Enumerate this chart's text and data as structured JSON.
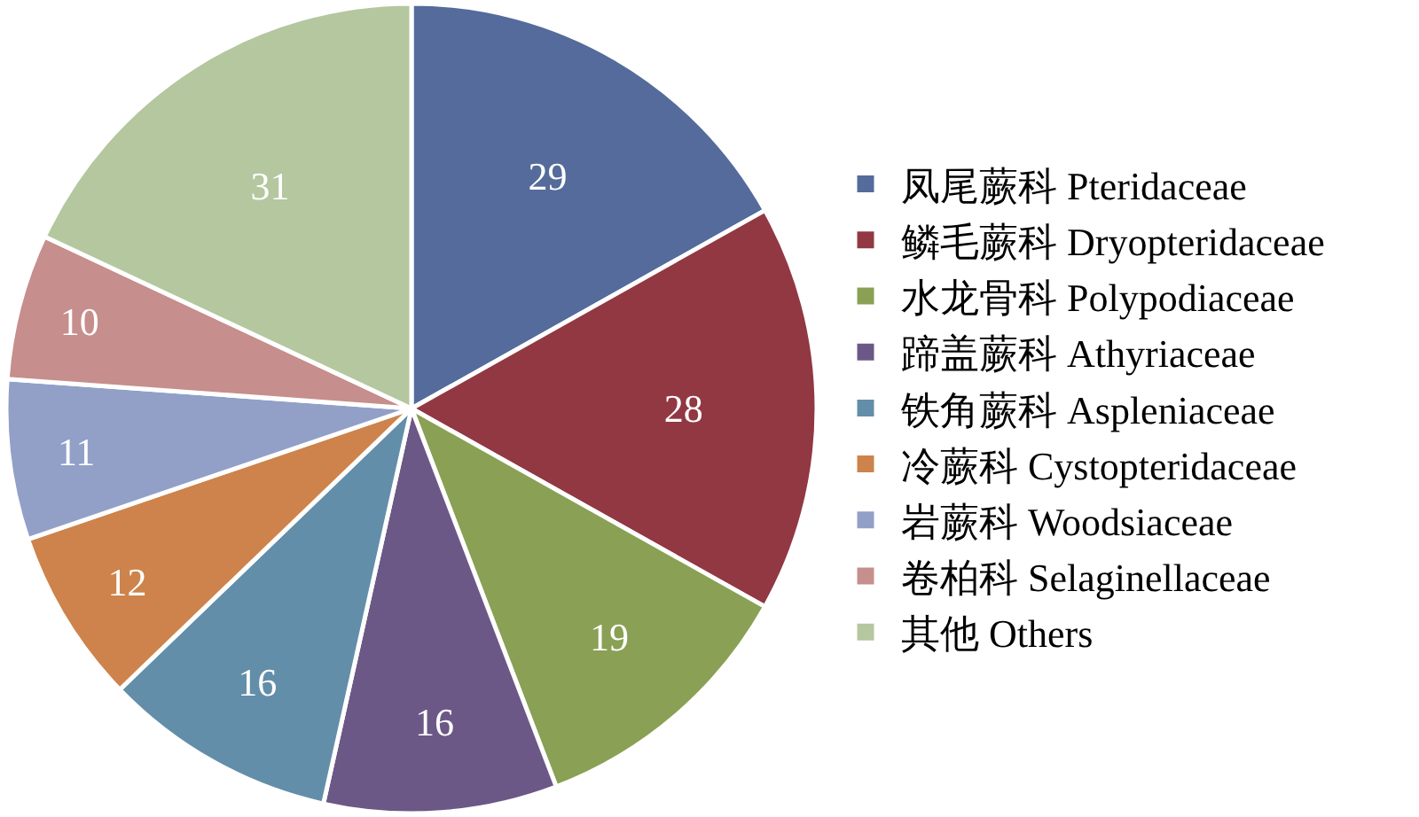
{
  "chart_data": {
    "type": "pie",
    "categories": [
      "凤尾蕨科 Pteridaceae",
      "鳞毛蕨科 Dryopteridaceae",
      "水龙骨科 Polypodiaceae",
      "蹄盖蕨科 Athyriaceae",
      "铁角蕨科 Aspleniaceae",
      "冷蕨科 Cystopteridaceae",
      "岩蕨科 Woodsiaceae",
      "卷柏科 Selaginellaceae",
      "其他 Others"
    ],
    "values": [
      29,
      28,
      19,
      16,
      16,
      12,
      11,
      10,
      31
    ],
    "colors": [
      "#546b9b",
      "#913843",
      "#8aa054",
      "#6b5886",
      "#638ea9",
      "#cd834b",
      "#92a0c8",
      "#c68e8c",
      "#b4c79f"
    ],
    "data_labels": true,
    "legend": "right"
  }
}
